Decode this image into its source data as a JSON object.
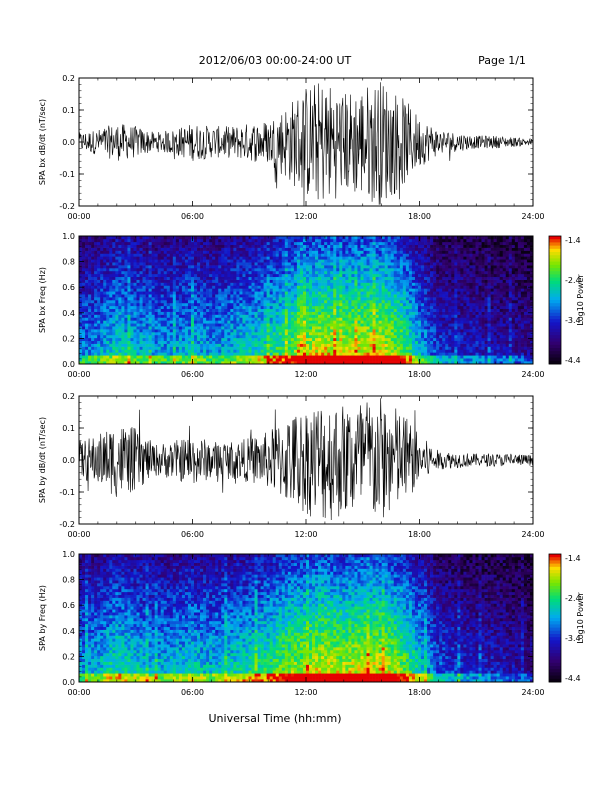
{
  "header": {
    "title": "2012/06/03  00:00-24:00 UT",
    "page": "Page 1/1"
  },
  "footer": {
    "xlabel": "Universal Time (hh:mm)"
  },
  "chart_data": [
    {
      "type": "line",
      "panel": "SPA bx dB/dt",
      "ylabel": "SPA bx dB/dt (nT/sec)",
      "ylim": [
        -0.2,
        0.2
      ],
      "yticks": [
        "-0.2",
        "-0.1",
        "0.0",
        "0.1",
        "0.2"
      ],
      "xlim": [
        "00:00",
        "24:00"
      ],
      "xticks": [
        "00:00",
        "06:00",
        "12:00",
        "18:00",
        "24:00"
      ],
      "series": [
        {
          "x": [
            0,
            1,
            2,
            3,
            4,
            5,
            6,
            7,
            8,
            9,
            10,
            11,
            12,
            13,
            14,
            15,
            16,
            17,
            18,
            19,
            20,
            21,
            22,
            23,
            24
          ],
          "amplitude": [
            0.03,
            0.04,
            0.06,
            0.05,
            0.03,
            0.04,
            0.06,
            0.05,
            0.05,
            0.06,
            0.07,
            0.12,
            0.18,
            0.2,
            0.16,
            0.18,
            0.2,
            0.15,
            0.08,
            0.04,
            0.03,
            0.02,
            0.02,
            0.015,
            0.01
          ]
        }
      ]
    },
    {
      "type": "heatmap",
      "panel": "SPA bx Freq",
      "ylabel": "SPA bx Freq (Hz)",
      "ylim": [
        0.0,
        1.0
      ],
      "yticks": [
        "0.0",
        "0.2",
        "0.4",
        "0.6",
        "0.8",
        "1.0"
      ],
      "xlim": [
        "00:00",
        "24:00"
      ],
      "xticks": [
        "00:00",
        "06:00",
        "12:00",
        "18:00",
        "24:00"
      ],
      "colorbar": {
        "label": "Log10 Power",
        "range": [
          -4.4,
          -1.4
        ],
        "ticks": [
          "-1.4",
          "-2.4",
          "-3.4",
          "-4.4"
        ]
      },
      "activity": [
        0.35,
        0.4,
        0.5,
        0.45,
        0.4,
        0.4,
        0.45,
        0.4,
        0.45,
        0.5,
        0.55,
        0.65,
        0.75,
        0.8,
        0.75,
        0.8,
        0.8,
        0.7,
        0.45,
        0.25,
        0.2,
        0.2,
        0.15,
        0.15,
        0.12
      ]
    },
    {
      "type": "line",
      "panel": "SPA by dB/dt",
      "ylabel": "SPA by dB/dt (nT/sec)",
      "ylim": [
        -0.2,
        0.2
      ],
      "yticks": [
        "-0.2",
        "-0.1",
        "0.0",
        "0.1",
        "0.2"
      ],
      "xlim": [
        "00:00",
        "24:00"
      ],
      "xticks": [
        "00:00",
        "06:00",
        "12:00",
        "18:00",
        "24:00"
      ],
      "series": [
        {
          "x": [
            0,
            1,
            2,
            3,
            4,
            5,
            6,
            7,
            8,
            9,
            10,
            11,
            12,
            13,
            14,
            15,
            16,
            17,
            18,
            19,
            20,
            21,
            22,
            23,
            24
          ],
          "amplitude": [
            0.06,
            0.08,
            0.12,
            0.1,
            0.05,
            0.06,
            0.08,
            0.06,
            0.06,
            0.07,
            0.09,
            0.14,
            0.17,
            0.2,
            0.18,
            0.2,
            0.2,
            0.16,
            0.08,
            0.03,
            0.025,
            0.02,
            0.02,
            0.02,
            0.015
          ]
        }
      ]
    },
    {
      "type": "heatmap",
      "panel": "SPA by Freq",
      "ylabel": "SPA by Freq (Hz)",
      "ylim": [
        0.0,
        1.0
      ],
      "yticks": [
        "0.0",
        "0.2",
        "0.4",
        "0.6",
        "0.8",
        "1.0"
      ],
      "xlim": [
        "00:00",
        "24:00"
      ],
      "xticks": [
        "00:00",
        "06:00",
        "12:00",
        "18:00",
        "24:00"
      ],
      "colorbar": {
        "label": "Log10 Power",
        "range": [
          -4.4,
          -1.4
        ],
        "ticks": [
          "-1.4",
          "-2.4",
          "-3.4",
          "-4.4"
        ]
      },
      "activity": [
        0.4,
        0.45,
        0.55,
        0.5,
        0.45,
        0.45,
        0.5,
        0.45,
        0.5,
        0.55,
        0.6,
        0.7,
        0.75,
        0.8,
        0.75,
        0.8,
        0.8,
        0.7,
        0.5,
        0.3,
        0.25,
        0.2,
        0.2,
        0.15,
        0.12
      ]
    }
  ]
}
